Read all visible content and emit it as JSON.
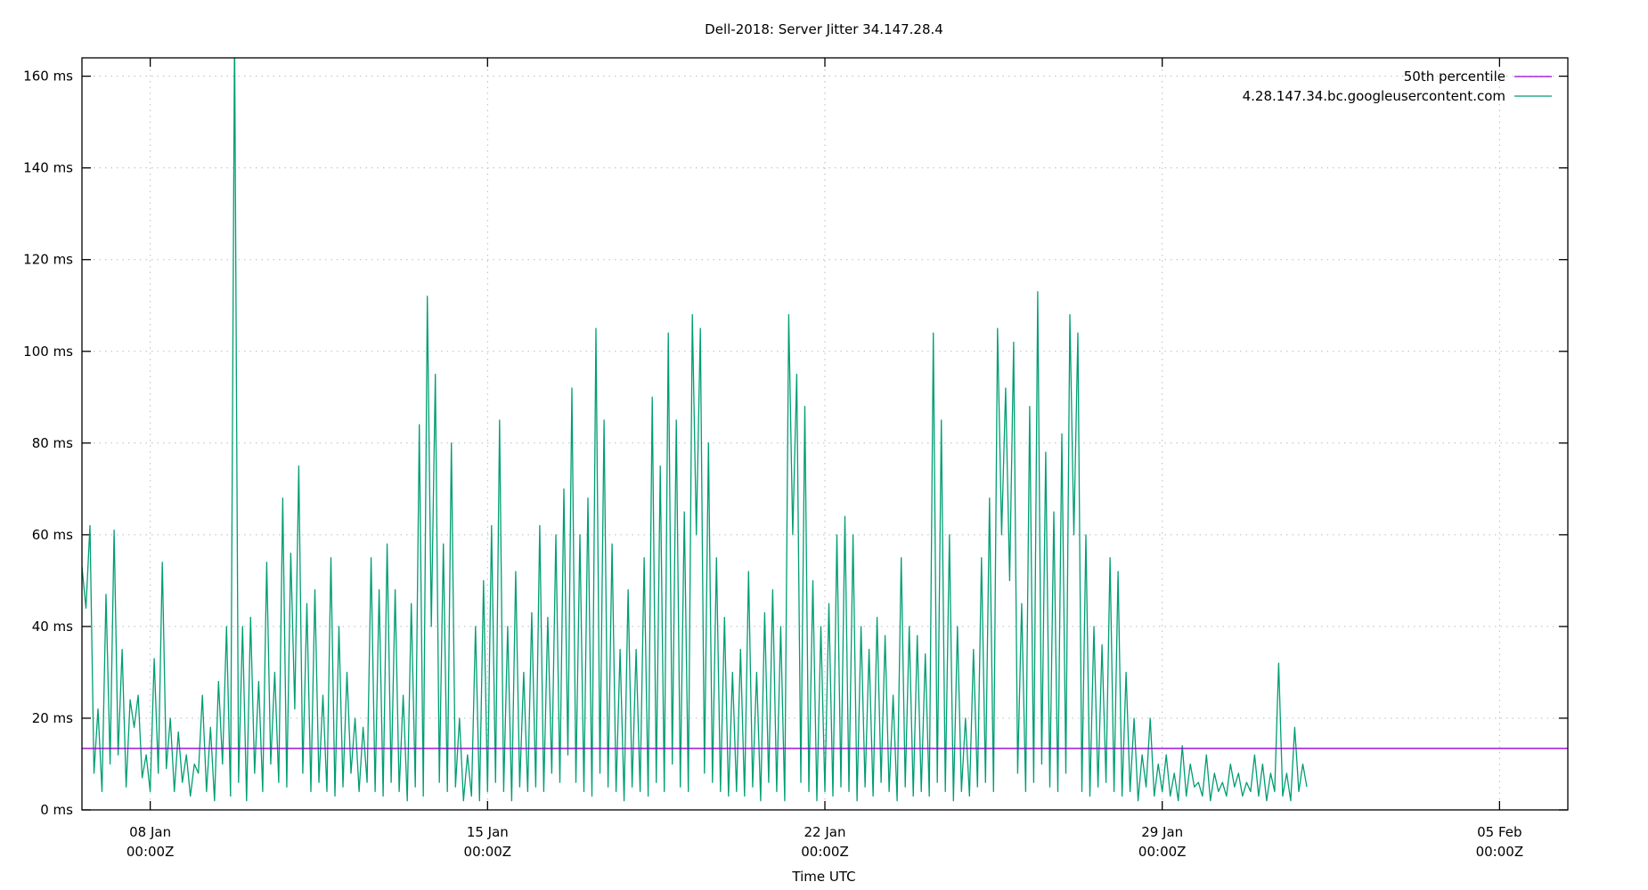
{
  "chart_data": {
    "type": "line",
    "title": "Dell-2018: Server Jitter 34.147.28.4",
    "xlabel": "Time UTC",
    "ylabel": "",
    "ylim": [
      0,
      164
    ],
    "y_ticks": [
      {
        "value": 0,
        "label": "0 ms"
      },
      {
        "value": 20,
        "label": "20 ms"
      },
      {
        "value": 40,
        "label": "40 ms"
      },
      {
        "value": 60,
        "label": "60 ms"
      },
      {
        "value": 80,
        "label": "80 ms"
      },
      {
        "value": 100,
        "label": "100 ms"
      },
      {
        "value": 120,
        "label": "120 ms"
      },
      {
        "value": 140,
        "label": "140 ms"
      },
      {
        "value": 160,
        "label": "160 ms"
      }
    ],
    "x_unit": "hours since 06 Jan 14:00Z",
    "xlim": [
      0,
      740
    ],
    "x_ticks": [
      {
        "value": 34,
        "line1": "08 Jan",
        "line2": "00:00Z"
      },
      {
        "value": 202,
        "line1": "15 Jan",
        "line2": "00:00Z"
      },
      {
        "value": 370,
        "line1": "22 Jan",
        "line2": "00:00Z"
      },
      {
        "value": 538,
        "line1": "29 Jan",
        "line2": "00:00Z"
      },
      {
        "value": 706,
        "line1": "05 Feb",
        "line2": "00:00Z"
      }
    ],
    "grid": true,
    "legend_position": "top-right",
    "series": [
      {
        "name": "50th percentile",
        "color": "#9400d3",
        "type": "hline",
        "value": 13.4
      },
      {
        "name": "4.28.147.34.bc.googleusercontent.com",
        "color": "#009e73",
        "step_hours": 2,
        "values": [
          53,
          44,
          62,
          8,
          22,
          4,
          47,
          10,
          61,
          12,
          35,
          5,
          24,
          18,
          25,
          7,
          12,
          4,
          33,
          8,
          54,
          9,
          20,
          4,
          17,
          6,
          12,
          3,
          10,
          8,
          25,
          4,
          18,
          2,
          28,
          10,
          40,
          3,
          170,
          6,
          40,
          2,
          42,
          8,
          28,
          4,
          54,
          10,
          30,
          6,
          68,
          5,
          56,
          22,
          75,
          8,
          45,
          4,
          48,
          6,
          25,
          4,
          55,
          3,
          40,
          5,
          30,
          8,
          20,
          4,
          18,
          6,
          55,
          4,
          48,
          3,
          58,
          6,
          48,
          4,
          25,
          2,
          45,
          5,
          84,
          3,
          112,
          40,
          95,
          6,
          58,
          4,
          80,
          5,
          20,
          2,
          12,
          3,
          40,
          2,
          50,
          4,
          62,
          6,
          85,
          4,
          40,
          2,
          52,
          5,
          30,
          4,
          43,
          5,
          62,
          4,
          42,
          8,
          60,
          6,
          70,
          12,
          92,
          6,
          60,
          4,
          68,
          3,
          105,
          8,
          85,
          5,
          58,
          4,
          35,
          2,
          48,
          5,
          35,
          4,
          55,
          3,
          90,
          6,
          75,
          4,
          104,
          10,
          85,
          5,
          65,
          4,
          108,
          60,
          105,
          8,
          80,
          6,
          55,
          4,
          42,
          3,
          30,
          4,
          35,
          3,
          52,
          5,
          30,
          2,
          43,
          6,
          48,
          4,
          40,
          2,
          108,
          60,
          95,
          6,
          88,
          4,
          50,
          2,
          40,
          4,
          45,
          3,
          60,
          5,
          64,
          4,
          60,
          2,
          40,
          5,
          35,
          3,
          42,
          6,
          38,
          4,
          25,
          2,
          55,
          5,
          40,
          3,
          38,
          4,
          34,
          3,
          104,
          6,
          85,
          4,
          60,
          2,
          40,
          4,
          20,
          3,
          35,
          5,
          55,
          6,
          68,
          4,
          105,
          60,
          92,
          50,
          102,
          8,
          45,
          4,
          88,
          6,
          113,
          10,
          78,
          5,
          65,
          4,
          82,
          8,
          108,
          60,
          104,
          4,
          60,
          3,
          40,
          5,
          36,
          6,
          55,
          4,
          52,
          3,
          30,
          4,
          20,
          2,
          12,
          5,
          20,
          3,
          10,
          4,
          12,
          3,
          8,
          2,
          14,
          3,
          10,
          5,
          6,
          3,
          12,
          2,
          8,
          4,
          6,
          3,
          10,
          5,
          8,
          3,
          6,
          4,
          12,
          3,
          10,
          2,
          8,
          4,
          32,
          3,
          8,
          2,
          18,
          4,
          10,
          5
        ]
      }
    ]
  },
  "legend": {
    "items": [
      {
        "label": "50th percentile",
        "color": "#9400d3"
      },
      {
        "label": "4.28.147.34.bc.googleusercontent.com",
        "color": "#009e73"
      }
    ]
  }
}
